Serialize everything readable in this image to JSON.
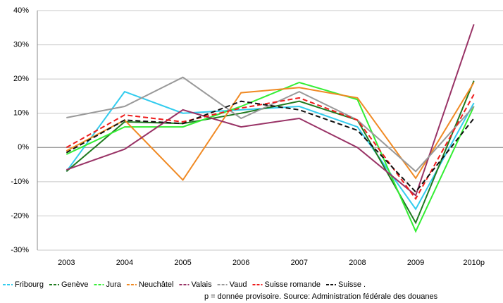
{
  "chart_data": {
    "type": "line",
    "categories": [
      "2003",
      "2004",
      "2005",
      "2006",
      "2007",
      "2008",
      "2009",
      "2010p"
    ],
    "series": [
      {
        "name": "Fribourg",
        "color": "#33ccee",
        "dashed": false,
        "values": [
          -7,
          16.3,
          10,
          11,
          12,
          6,
          -18,
          13
        ]
      },
      {
        "name": "Genève",
        "color": "#1f7a1f",
        "dashed": false,
        "values": [
          -7,
          7.5,
          7,
          10,
          13.5,
          8,
          -22,
          19.5
        ]
      },
      {
        "name": "Jura",
        "color": "#33ee33",
        "dashed": false,
        "values": [
          -2,
          6,
          6,
          12,
          19,
          14,
          -24.5,
          12
        ]
      },
      {
        "name": "Neuchâtel",
        "color": "#f08a24",
        "dashed": false,
        "values": [
          -1,
          8,
          -9.5,
          16,
          17.5,
          14.5,
          -9,
          19
        ]
      },
      {
        "name": "Valais",
        "color": "#993366",
        "dashed": false,
        "values": [
          -6.5,
          -0.5,
          11,
          6,
          8.5,
          0,
          -14,
          36
        ]
      },
      {
        "name": "Vaud",
        "color": "#999999",
        "dashed": false,
        "values": [
          8.7,
          12,
          20.5,
          8.5,
          16.3,
          8,
          -7,
          12
        ]
      },
      {
        "name": "Suisse romande",
        "color": "#ee1c1c",
        "dashed": true,
        "values": [
          0,
          9.5,
          7.5,
          11.5,
          14.5,
          8,
          -15,
          15.5
        ]
      },
      {
        "name": "Suisse .",
        "color": "#111111",
        "dashed": true,
        "values": [
          -1.5,
          8,
          7,
          13.5,
          11,
          5,
          -13,
          8.5
        ]
      }
    ],
    "ylim": [
      -30,
      40
    ],
    "yticks": [
      {
        "value": -30,
        "label": "-30%"
      },
      {
        "value": -20,
        "label": "-20%"
      },
      {
        "value": -10,
        "label": "-10%"
      },
      {
        "value": 0,
        "label": "0%"
      },
      {
        "value": 10,
        "label": "10%"
      },
      {
        "value": 20,
        "label": "20%"
      },
      {
        "value": 30,
        "label": "30%"
      },
      {
        "value": 40,
        "label": "40%"
      }
    ],
    "grid": true,
    "legend": "bottom",
    "note": "p = donnée provisoire. Source: Administration fédérale des douanes"
  }
}
